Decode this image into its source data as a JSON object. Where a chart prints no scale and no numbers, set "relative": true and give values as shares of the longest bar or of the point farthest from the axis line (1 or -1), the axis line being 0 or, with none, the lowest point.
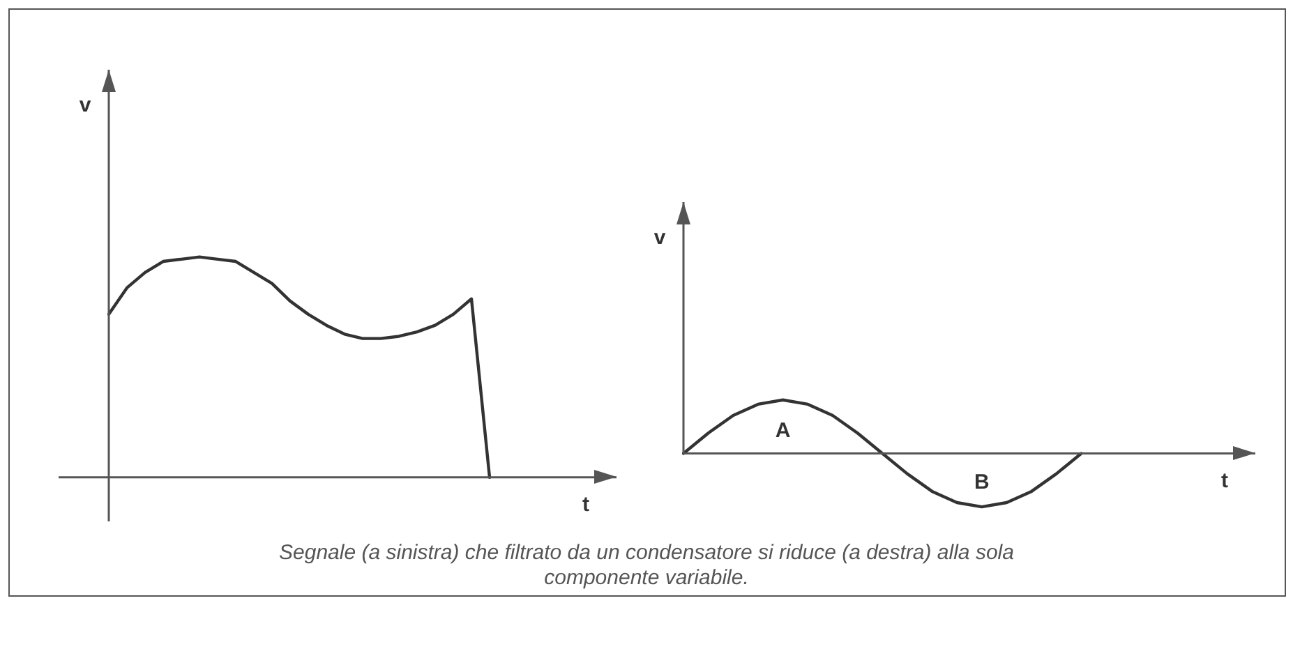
{
  "chart_data": [
    {
      "type": "line",
      "relative": true,
      "xlabel": "t",
      "ylabel": "v",
      "tick_labels": false,
      "color": "#333333",
      "categories": [
        null,
        null,
        null,
        null,
        null,
        null,
        null,
        null,
        null,
        null,
        null,
        null,
        null,
        null,
        null,
        null,
        null,
        null,
        null,
        null,
        null,
        null,
        null,
        null,
        null,
        null,
        null,
        null,
        null
      ],
      "values": [
        0.74,
        0.86,
        0.93,
        0.98,
        0.99,
        1,
        0.99,
        0.98,
        0.93,
        0.88,
        0.8,
        0.74,
        0.69,
        0.65,
        0.63,
        0.63,
        0.64,
        0.66,
        0.69,
        0.74,
        0.81,
        0,
        null,
        null,
        null,
        null,
        null,
        null,
        null
      ],
      "annotations": [
        "Segnale (a sinistra) che filtrato da un condensatore si riduce (a destra) alla sola componente variabile."
      ]
    },
    {
      "type": "line",
      "relative": true,
      "xlabel": "t",
      "ylabel": "v",
      "tick_labels": false,
      "color": "#333333",
      "categories": [
        null,
        null,
        null,
        null,
        null,
        null,
        null,
        null,
        null,
        null,
        null,
        null,
        null,
        null,
        null,
        null,
        null,
        null,
        null,
        null,
        null,
        null,
        null,
        null
      ],
      "values": [
        0,
        0.38,
        0.71,
        0.92,
        1,
        0.92,
        0.71,
        0.38,
        0,
        -0.38,
        -0.71,
        -0.92,
        -1,
        -0.92,
        -0.71,
        -0.38,
        0,
        null,
        null,
        null,
        null,
        null,
        null,
        null
      ],
      "annotations": [
        "A",
        "B"
      ]
    }
  ]
}
